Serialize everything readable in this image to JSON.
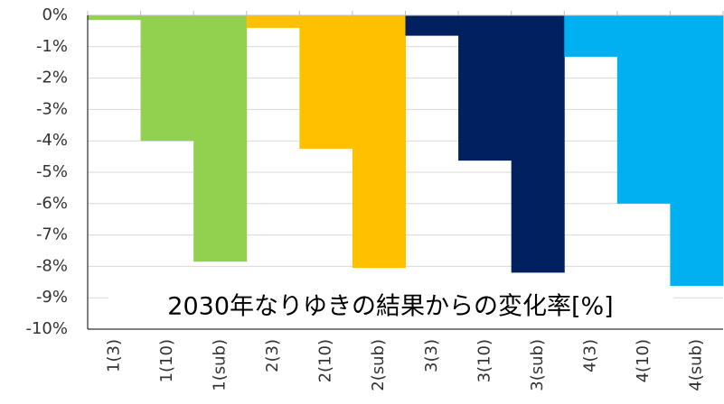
{
  "chart_data": {
    "type": "bar",
    "annotation": "2030年なりゆきの結果からの変化率[%]",
    "categories": [
      "1(3)",
      "1(10)",
      "1(sub)",
      "2(3)",
      "2(10)",
      "2(sub)",
      "3(3)",
      "3(10)",
      "3(sub)",
      "4(3)",
      "4(10)",
      "4(sub)"
    ],
    "values": [
      -0.15,
      -4.0,
      -7.85,
      -0.4,
      -4.25,
      -8.05,
      -0.65,
      -4.63,
      -8.2,
      -1.32,
      -6.0,
      -8.62
    ],
    "colors": [
      "#92d050",
      "#92d050",
      "#92d050",
      "#ffc000",
      "#ffc000",
      "#ffc000",
      "#002060",
      "#002060",
      "#002060",
      "#00b0f0",
      "#00b0f0",
      "#00b0f0"
    ],
    "ylim": [
      -10,
      0
    ],
    "yticks": [
      {
        "value": 0,
        "label": "0%"
      },
      {
        "value": -1,
        "label": "-1%"
      },
      {
        "value": -2,
        "label": "-2%"
      },
      {
        "value": -3,
        "label": "-3%"
      },
      {
        "value": -4,
        "label": "-4%"
      },
      {
        "value": -5,
        "label": "-5%"
      },
      {
        "value": -6,
        "label": "-6%"
      },
      {
        "value": -7,
        "label": "-7%"
      },
      {
        "value": -8,
        "label": "-8%"
      },
      {
        "value": -9,
        "label": "-9%"
      },
      {
        "value": -10,
        "label": "-10%"
      }
    ],
    "grid": true
  }
}
